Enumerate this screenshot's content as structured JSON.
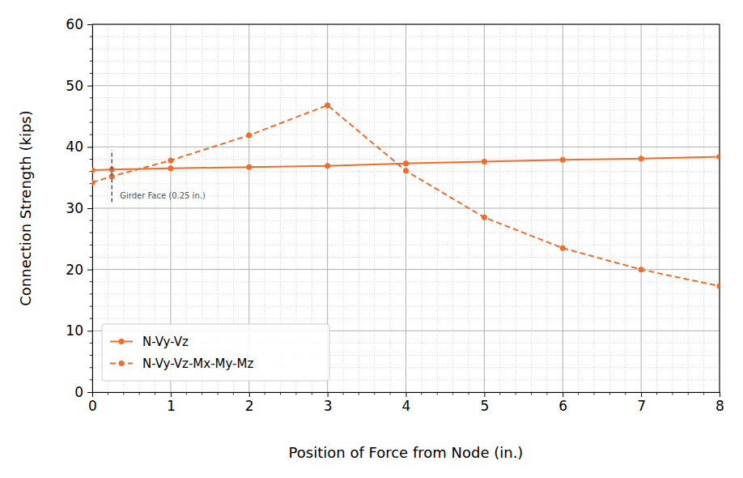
{
  "chart_data": {
    "type": "line",
    "x_label": "Position of Force from Node (in.)",
    "y_label": "Connection Strength (kips)",
    "x": [
      0,
      0.25,
      1,
      2,
      3,
      4,
      5,
      6,
      7,
      8
    ],
    "series": [
      {
        "name": "N-Vy-Vz",
        "color": "#f26b2a",
        "marker": "circle",
        "line_style": "solid",
        "values": [
          36.2,
          36.3,
          36.5,
          36.7,
          36.9,
          37.3,
          37.6,
          37.9,
          38.1,
          38.4
        ]
      },
      {
        "name": "N-Vy-Vz-Mx-My-Mz",
        "color": "#f26b2a",
        "marker": "circle",
        "line_style": "dashed",
        "values": [
          34.2,
          35.2,
          37.8,
          41.9,
          46.8,
          36.1,
          28.5,
          23.5,
          20.0,
          17.3
        ]
      }
    ],
    "annotations": [
      {
        "text": "Girder Face (0.25 in.)",
        "x": 0.25,
        "y_range": [
          31,
          39.5
        ],
        "color": "#555555"
      }
    ],
    "xlim": [
      0,
      8
    ],
    "xticks": [
      0,
      1,
      2,
      3,
      4,
      5,
      6,
      7,
      8
    ],
    "ylim": [
      0,
      60
    ],
    "yticks": [
      0,
      10,
      20,
      30,
      40,
      50,
      60
    ],
    "grid": true,
    "legend": "lower left"
  }
}
